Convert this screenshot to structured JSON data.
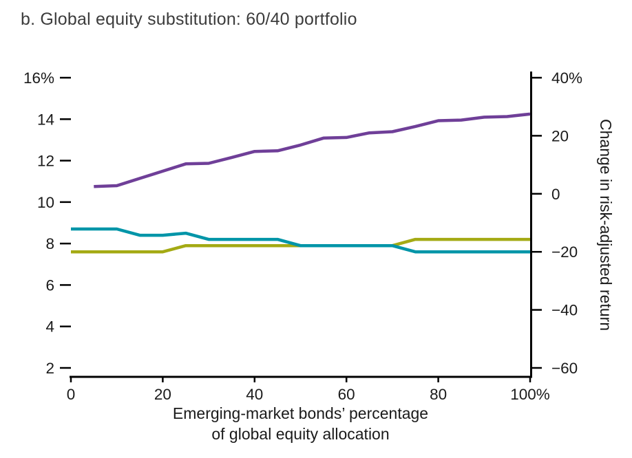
{
  "title": "b. Global equity substitution: 60/40 portfolio",
  "chart_data": {
    "type": "line",
    "title": "b. Global equity substitution: 60/40 portfolio",
    "xlabel": "Emerging-market bonds’ percentage of global equity allocation",
    "xlabel_lines": [
      "Emerging-market bonds’ percentage",
      "of global equity allocation"
    ],
    "ylabel_right": "Change in risk-adjusted return",
    "x_range": [
      0,
      100
    ],
    "x_ticks": [
      0,
      20,
      40,
      60,
      80,
      100
    ],
    "x_tick_labels": [
      "0",
      "20",
      "40",
      "60",
      "80",
      "100%"
    ],
    "left_axis": {
      "range": [
        2,
        16
      ],
      "ticks": [
        2,
        4,
        6,
        8,
        10,
        12,
        14,
        16
      ],
      "labels": [
        "2",
        "4",
        "6",
        "8",
        "10",
        "12",
        "14",
        "16%"
      ]
    },
    "right_axis": {
      "range": [
        -60,
        40
      ],
      "ticks": [
        -60,
        -40,
        -20,
        0,
        20,
        40
      ],
      "labels": [
        "−60",
        "−40",
        "−20",
        "0",
        "20",
        "40%"
      ]
    },
    "grid": false,
    "legend": "none",
    "series": [
      {
        "name": "olive-line",
        "axis": "left",
        "color": "#a4aa14",
        "x": [
          0,
          5,
          10,
          15,
          20,
          25,
          30,
          35,
          40,
          45,
          50,
          55,
          60,
          65,
          70,
          75,
          80,
          85,
          90,
          95,
          100
        ],
        "values": [
          7.6,
          7.6,
          7.6,
          7.6,
          7.6,
          7.9,
          7.9,
          7.9,
          7.9,
          7.9,
          7.9,
          7.9,
          7.9,
          7.9,
          7.9,
          8.2,
          8.2,
          8.2,
          8.2,
          8.2,
          8.2
        ]
      },
      {
        "name": "teal-line",
        "axis": "left",
        "color": "#0095a8",
        "x": [
          0,
          5,
          10,
          15,
          20,
          25,
          30,
          35,
          40,
          45,
          50,
          55,
          60,
          65,
          70,
          75,
          80,
          85,
          90,
          95,
          100
        ],
        "values": [
          8.7,
          8.7,
          8.7,
          8.4,
          8.4,
          8.5,
          8.2,
          8.2,
          8.2,
          8.2,
          7.9,
          7.9,
          7.9,
          7.9,
          7.9,
          7.6,
          7.6,
          7.6,
          7.6,
          7.6,
          7.6
        ]
      },
      {
        "name": "purple-line-change-in-risk-adjusted-return",
        "axis": "right",
        "color": "#6f3f98",
        "x": [
          5,
          10,
          15,
          20,
          25,
          30,
          35,
          40,
          45,
          50,
          55,
          60,
          65,
          70,
          75,
          80,
          85,
          90,
          95,
          100
        ],
        "values": [
          2.5,
          2.8,
          5.3,
          7.8,
          10.3,
          10.5,
          12.5,
          14.6,
          14.8,
          16.8,
          19.2,
          19.4,
          21.0,
          21.4,
          23.2,
          25.2,
          25.4,
          26.4,
          26.6,
          27.5
        ]
      }
    ]
  }
}
